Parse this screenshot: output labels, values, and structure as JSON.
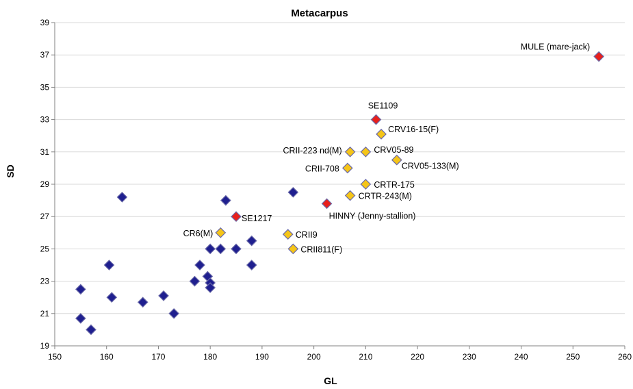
{
  "chart_data": {
    "type": "scatter",
    "title": "Metacarpus",
    "xlabel": "GL",
    "ylabel": "SD",
    "xlim": [
      150,
      260
    ],
    "ylim": [
      19,
      39
    ],
    "xticks": [
      150,
      160,
      170,
      180,
      190,
      200,
      210,
      220,
      230,
      240,
      250,
      260
    ],
    "yticks": [
      19,
      21,
      23,
      25,
      27,
      29,
      31,
      33,
      35,
      37,
      39
    ],
    "grid": "horizontal",
    "legend": "none",
    "colors": {
      "blue": "#1f1f8f",
      "yellow": "#f5c518",
      "red": "#e8201c",
      "marker_edge": "#6a6aa8"
    },
    "series": [
      {
        "color": "blue",
        "points": [
          {
            "x": 155,
            "y": 22.5
          },
          {
            "x": 155,
            "y": 20.7
          },
          {
            "x": 157,
            "y": 20.0
          },
          {
            "x": 160.5,
            "y": 24.0
          },
          {
            "x": 161,
            "y": 22.0
          },
          {
            "x": 163,
            "y": 28.2
          },
          {
            "x": 167,
            "y": 21.7
          },
          {
            "x": 171,
            "y": 22.1
          },
          {
            "x": 173,
            "y": 21.0
          },
          {
            "x": 177,
            "y": 23.0
          },
          {
            "x": 178,
            "y": 24.0
          },
          {
            "x": 179.5,
            "y": 23.3
          },
          {
            "x": 180,
            "y": 22.9
          },
          {
            "x": 180,
            "y": 22.6
          },
          {
            "x": 180,
            "y": 25.0
          },
          {
            "x": 182,
            "y": 25.0
          },
          {
            "x": 183,
            "y": 28.0
          },
          {
            "x": 185,
            "y": 25.0
          },
          {
            "x": 188,
            "y": 25.5
          },
          {
            "x": 188,
            "y": 24.0
          },
          {
            "x": 196,
            "y": 28.5
          }
        ]
      },
      {
        "color": "yellow",
        "points": [
          {
            "x": 182,
            "y": 26.0,
            "label": "CR6(M)"
          },
          {
            "x": 195,
            "y": 25.9,
            "label": "CRII9"
          },
          {
            "x": 196,
            "y": 25.0,
            "label": "CRII811(F)"
          },
          {
            "x": 206.5,
            "y": 30.0,
            "label": "CRII-708"
          },
          {
            "x": 207,
            "y": 31.0,
            "label": "CRII-223 nd(M)"
          },
          {
            "x": 210,
            "y": 31.0,
            "label": "CRV05-89"
          },
          {
            "x": 207,
            "y": 28.3,
            "label": "CRTR-243(M)"
          },
          {
            "x": 210,
            "y": 29.0,
            "label": "CRTR-175"
          },
          {
            "x": 213,
            "y": 32.1,
            "label": "CRV16-15(F)"
          },
          {
            "x": 216,
            "y": 30.5,
            "label": "CRV05-133(M)"
          }
        ]
      },
      {
        "color": "red",
        "points": [
          {
            "x": 185,
            "y": 27.0,
            "label": "SE1217"
          },
          {
            "x": 202.5,
            "y": 27.8,
            "label": "HINNY (Jenny-stallion)"
          },
          {
            "x": 212,
            "y": 33.0,
            "label": "SE1109"
          },
          {
            "x": 255,
            "y": 36.9,
            "label": "MULE (mare-jack)"
          }
        ]
      }
    ]
  }
}
